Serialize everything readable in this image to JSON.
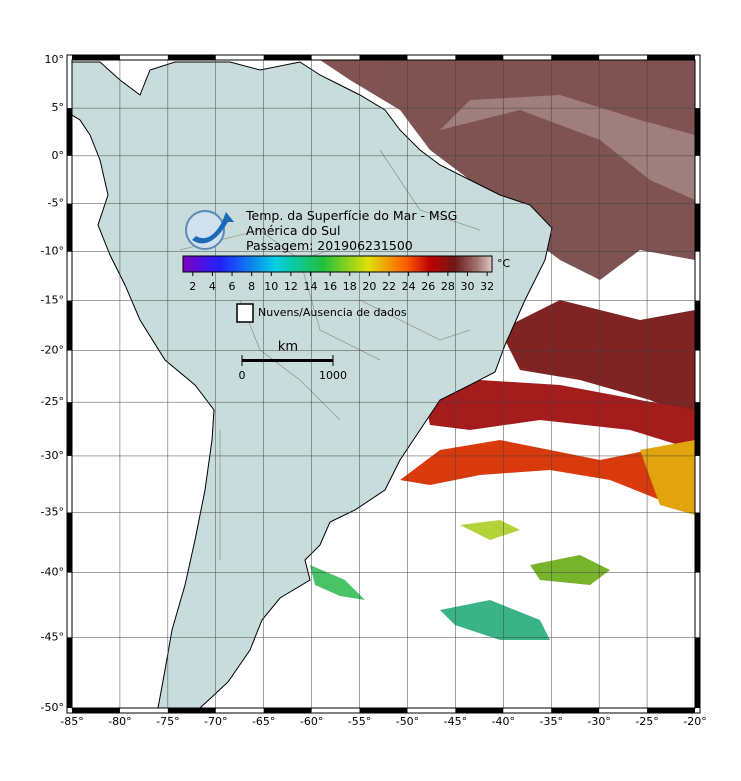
{
  "title_lines": [
    "Temp. da Superfície do Mar - MSG",
    "América do Sul",
    "Passagem: 201906231500"
  ],
  "colorbar": {
    "lim": [
      1,
      32.5
    ],
    "ticks": [
      2,
      4,
      6,
      8,
      10,
      12,
      14,
      16,
      18,
      20,
      22,
      24,
      26,
      28,
      30,
      32
    ],
    "unit": "°C"
  },
  "legend": "Nuvens/Ausencia de dados",
  "scale": {
    "unit": "km",
    "ticks": [
      0,
      1000
    ]
  },
  "map": {
    "xlim": [
      -85,
      -20
    ],
    "ylim": [
      -50,
      10
    ],
    "xticks": [
      {
        "value": -85,
        "label": "-85°"
      },
      {
        "value": -80,
        "label": "-80°"
      },
      {
        "value": -75,
        "label": "-75°"
      },
      {
        "value": -70,
        "label": "-70°"
      },
      {
        "value": -65,
        "label": "-65°"
      },
      {
        "value": -60,
        "label": "-60°"
      },
      {
        "value": -55,
        "label": "-55°"
      },
      {
        "value": -50,
        "label": "-50°"
      },
      {
        "value": -45,
        "label": "-45°"
      },
      {
        "value": -40,
        "label": "-40°"
      },
      {
        "value": -35,
        "label": "-35°"
      },
      {
        "value": -30,
        "label": "-30°"
      },
      {
        "value": -25,
        "label": "-25°"
      },
      {
        "value": -20,
        "label": "-20°"
      }
    ],
    "yticks": [
      {
        "value": 10,
        "label": "10°"
      },
      {
        "value": 5,
        "label": "5°"
      },
      {
        "value": 0,
        "label": "0°"
      },
      {
        "value": -5,
        "label": "-5°"
      },
      {
        "value": -10,
        "label": "-10°"
      },
      {
        "value": -15,
        "label": "-15°"
      },
      {
        "value": -20,
        "label": "-20°"
      },
      {
        "value": -25,
        "label": "-25°"
      },
      {
        "value": -30,
        "label": "-30°"
      },
      {
        "value": -35,
        "label": "-35°"
      },
      {
        "value": -40,
        "label": "-40°"
      },
      {
        "value": -45,
        "label": "-45°"
      },
      {
        "value": -50,
        "label": "-50°"
      }
    ]
  }
}
